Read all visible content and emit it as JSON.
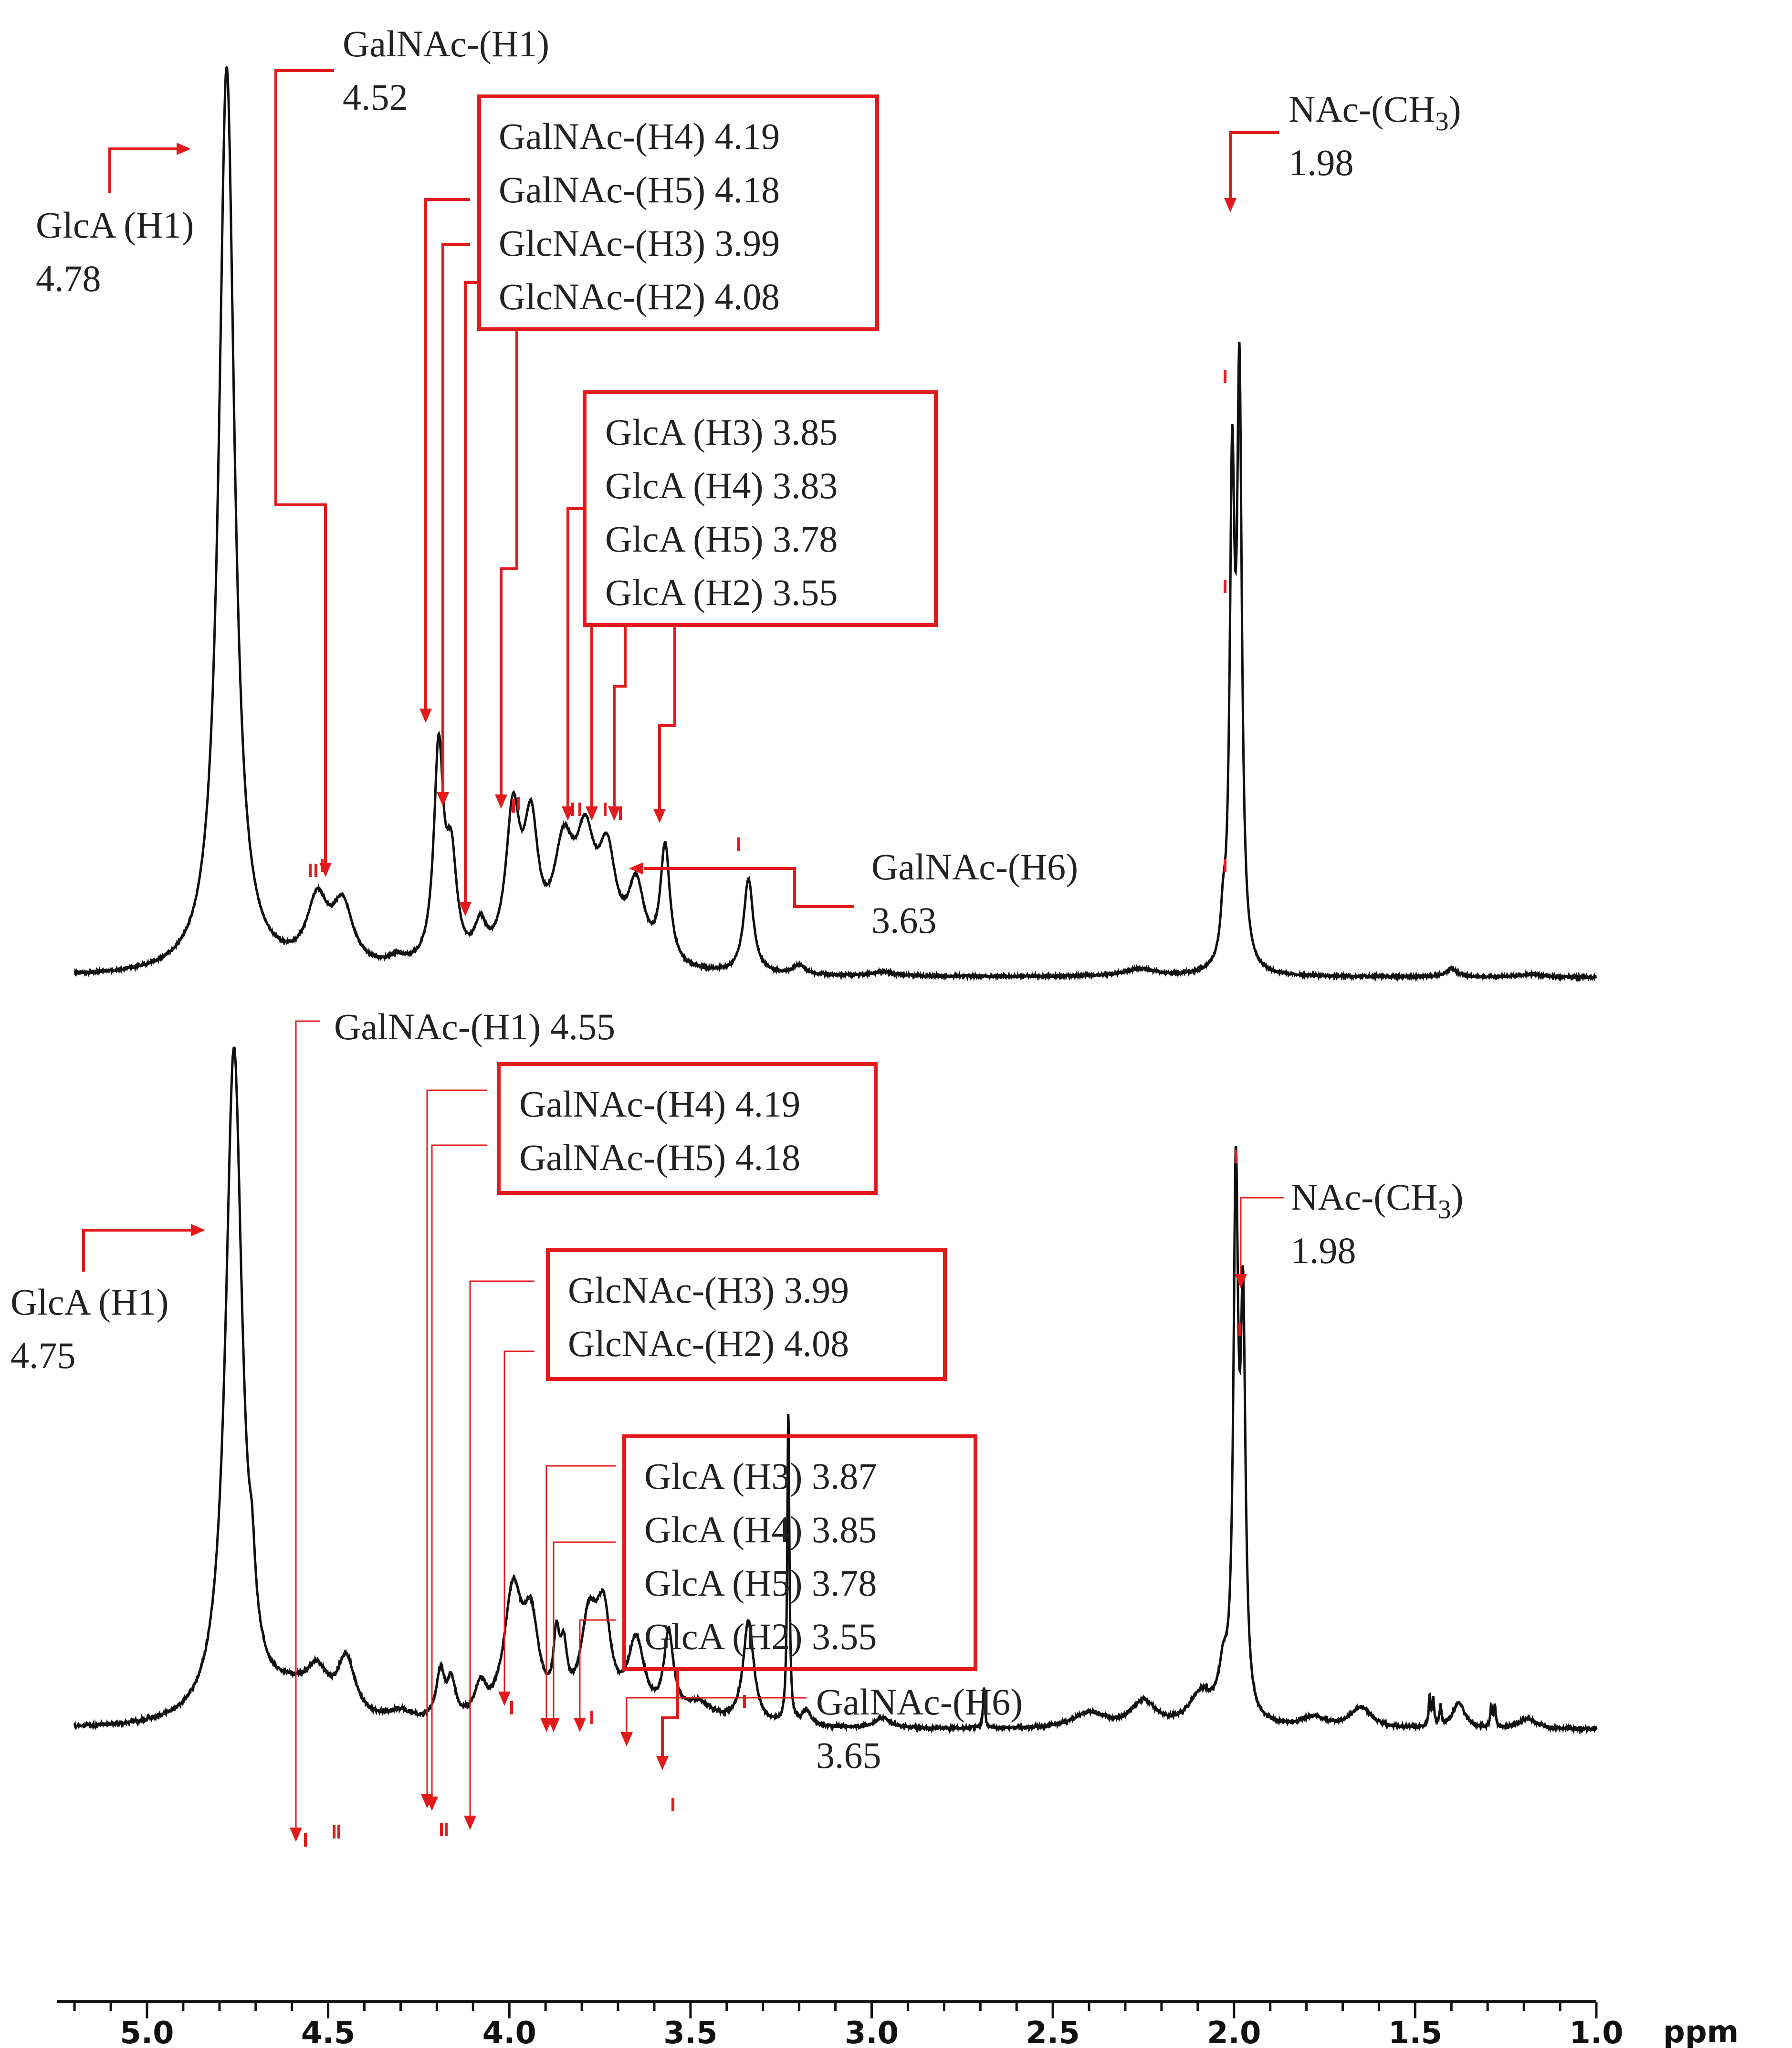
{
  "chart_data": [
    {
      "type": "line",
      "panel": "top",
      "peaks": [
        {
          "x": 4.78,
          "h": 1.2,
          "w": 0.026
        },
        {
          "x": 4.53,
          "h": 0.085,
          "w": 0.035
        },
        {
          "x": 4.46,
          "h": 0.08,
          "w": 0.035
        },
        {
          "x": 4.31,
          "h": 0.012,
          "w": 0.03
        },
        {
          "x": 4.195,
          "h": 0.28,
          "w": 0.016
        },
        {
          "x": 4.16,
          "h": 0.13,
          "w": 0.018
        },
        {
          "x": 4.08,
          "h": 0.045,
          "w": 0.02
        },
        {
          "x": 3.99,
          "h": 0.19,
          "w": 0.024
        },
        {
          "x": 3.94,
          "h": 0.165,
          "w": 0.024
        },
        {
          "x": 3.85,
          "h": 0.14,
          "w": 0.035
        },
        {
          "x": 3.79,
          "h": 0.14,
          "w": 0.032
        },
        {
          "x": 3.73,
          "h": 0.13,
          "w": 0.03
        },
        {
          "x": 3.65,
          "h": 0.1,
          "w": 0.028
        },
        {
          "x": 3.57,
          "h": 0.155,
          "w": 0.016
        },
        {
          "x": 3.34,
          "h": 0.125,
          "w": 0.016
        },
        {
          "x": 3.2,
          "h": 0.012,
          "w": 0.02
        },
        {
          "x": 2.97,
          "h": 0.006,
          "w": 0.03
        },
        {
          "x": 2.26,
          "h": 0.01,
          "w": 0.05
        },
        {
          "x": 2.03,
          "h": 0.05,
          "w": 0.008
        },
        {
          "x": 2.005,
          "h": 0.62,
          "w": 0.008
        },
        {
          "x": 1.985,
          "h": 0.75,
          "w": 0.008
        },
        {
          "x": 1.4,
          "h": 0.01,
          "w": 0.02
        },
        {
          "x": 1.18,
          "h": 0.004,
          "w": 0.03
        }
      ],
      "annotations": [
        {
          "label": "GlcA (H1)",
          "value": "4.78"
        },
        {
          "label": "GalNAc-(H1)",
          "value": "4.52"
        },
        {
          "label": "GalNAc-(H6)",
          "value": "3.63"
        },
        {
          "label": "NAc-(CH",
          "sub": "3",
          "close": ")",
          "value": "1.98"
        }
      ],
      "boxes": [
        [
          "GalNAc-(H4) 4.19",
          "GalNAc-(H5) 4.18",
          "GlcNAc-(H3) 3.99",
          "GlcNAc-(H2) 4.08"
        ],
        [
          "GlcA (H3) 3.85",
          "GlcA (H4) 3.83",
          "GlcA (H5) 3.78",
          "GlcA (H2) 3.55"
        ]
      ]
    },
    {
      "type": "line",
      "panel": "bottom",
      "peaks": [
        {
          "x": 4.76,
          "h": 1.3,
          "w": 0.028
        },
        {
          "x": 4.71,
          "h": 0.1,
          "w": 0.01
        },
        {
          "x": 4.6,
          "h": 0.05,
          "w": 0.08
        },
        {
          "x": 4.53,
          "h": 0.07,
          "w": 0.035
        },
        {
          "x": 4.45,
          "h": 0.11,
          "w": 0.03
        },
        {
          "x": 4.3,
          "h": 0.02,
          "w": 0.04
        },
        {
          "x": 4.19,
          "h": 0.09,
          "w": 0.014
        },
        {
          "x": 4.16,
          "h": 0.07,
          "w": 0.014
        },
        {
          "x": 4.08,
          "h": 0.06,
          "w": 0.018
        },
        {
          "x": 3.99,
          "h": 0.24,
          "w": 0.03
        },
        {
          "x": 3.94,
          "h": 0.17,
          "w": 0.026
        },
        {
          "x": 3.87,
          "h": 0.12,
          "w": 0.01
        },
        {
          "x": 3.85,
          "h": 0.1,
          "w": 0.012
        },
        {
          "x": 3.78,
          "h": 0.18,
          "w": 0.028
        },
        {
          "x": 3.74,
          "h": 0.18,
          "w": 0.024
        },
        {
          "x": 3.65,
          "h": 0.15,
          "w": 0.028
        },
        {
          "x": 3.56,
          "h": 0.16,
          "w": 0.016
        },
        {
          "x": 3.48,
          "h": 0.04,
          "w": 0.05
        },
        {
          "x": 3.34,
          "h": 0.2,
          "w": 0.018
        },
        {
          "x": 3.23,
          "h": 0.6,
          "w": 0.0035
        },
        {
          "x": 3.18,
          "h": 0.03,
          "w": 0.015
        },
        {
          "x": 2.97,
          "h": 0.02,
          "w": 0.025
        },
        {
          "x": 2.69,
          "h": 0.08,
          "w": 0.003
        },
        {
          "x": 2.4,
          "h": 0.03,
          "w": 0.05
        },
        {
          "x": 2.25,
          "h": 0.05,
          "w": 0.04
        },
        {
          "x": 2.09,
          "h": 0.06,
          "w": 0.04
        },
        {
          "x": 2.03,
          "h": 0.08,
          "w": 0.015
        },
        {
          "x": 1.995,
          "h": 1.0,
          "w": 0.008
        },
        {
          "x": 1.975,
          "h": 0.74,
          "w": 0.008
        },
        {
          "x": 1.78,
          "h": 0.02,
          "w": 0.04
        },
        {
          "x": 1.65,
          "h": 0.04,
          "w": 0.035
        },
        {
          "x": 1.46,
          "h": 0.06,
          "w": 0.003
        },
        {
          "x": 1.45,
          "h": 0.05,
          "w": 0.003
        },
        {
          "x": 1.43,
          "h": 0.04,
          "w": 0.003
        },
        {
          "x": 1.38,
          "h": 0.05,
          "w": 0.02
        },
        {
          "x": 1.29,
          "h": 0.04,
          "w": 0.003
        },
        {
          "x": 1.28,
          "h": 0.04,
          "w": 0.003
        },
        {
          "x": 1.19,
          "h": 0.02,
          "w": 0.03
        }
      ],
      "annotations": [
        {
          "label": "GlcA (H1)",
          "value": "4.75"
        },
        {
          "label": "GalNAc-(H1) 4.55",
          "value": ""
        },
        {
          "label": "GalNAc-(H6)",
          "value": "3.65"
        },
        {
          "label": "NAc-(CH",
          "sub": "3",
          "close": ")",
          "value": "1.98"
        }
      ],
      "boxes": [
        [
          "GalNAc-(H4) 4.19",
          "GalNAc-(H5) 4.18"
        ],
        [
          "GlcNAc-(H3) 3.99",
          "GlcNAc-(H2) 4.08"
        ],
        [
          "GlcA (H3) 3.87",
          "GlcA (H4) 3.85",
          "GlcA (H5) 3.78",
          "GlcA (H2) 3.55"
        ]
      ]
    }
  ],
  "axis": {
    "xlim": [
      5.2,
      1.0
    ],
    "ticks": [
      "5.0",
      "4.5",
      "4.0",
      "3.5",
      "3.0",
      "2.5",
      "2.0",
      "1.5",
      "1.0"
    ],
    "tick_values": [
      5.0,
      4.5,
      4.0,
      3.5,
      3.0,
      2.5,
      2.0,
      1.5,
      1.0
    ],
    "unit": "ppm",
    "inverted": true
  },
  "colors": {
    "trace": "#111111",
    "annotation": "#e31a1c",
    "text": "#222222"
  }
}
